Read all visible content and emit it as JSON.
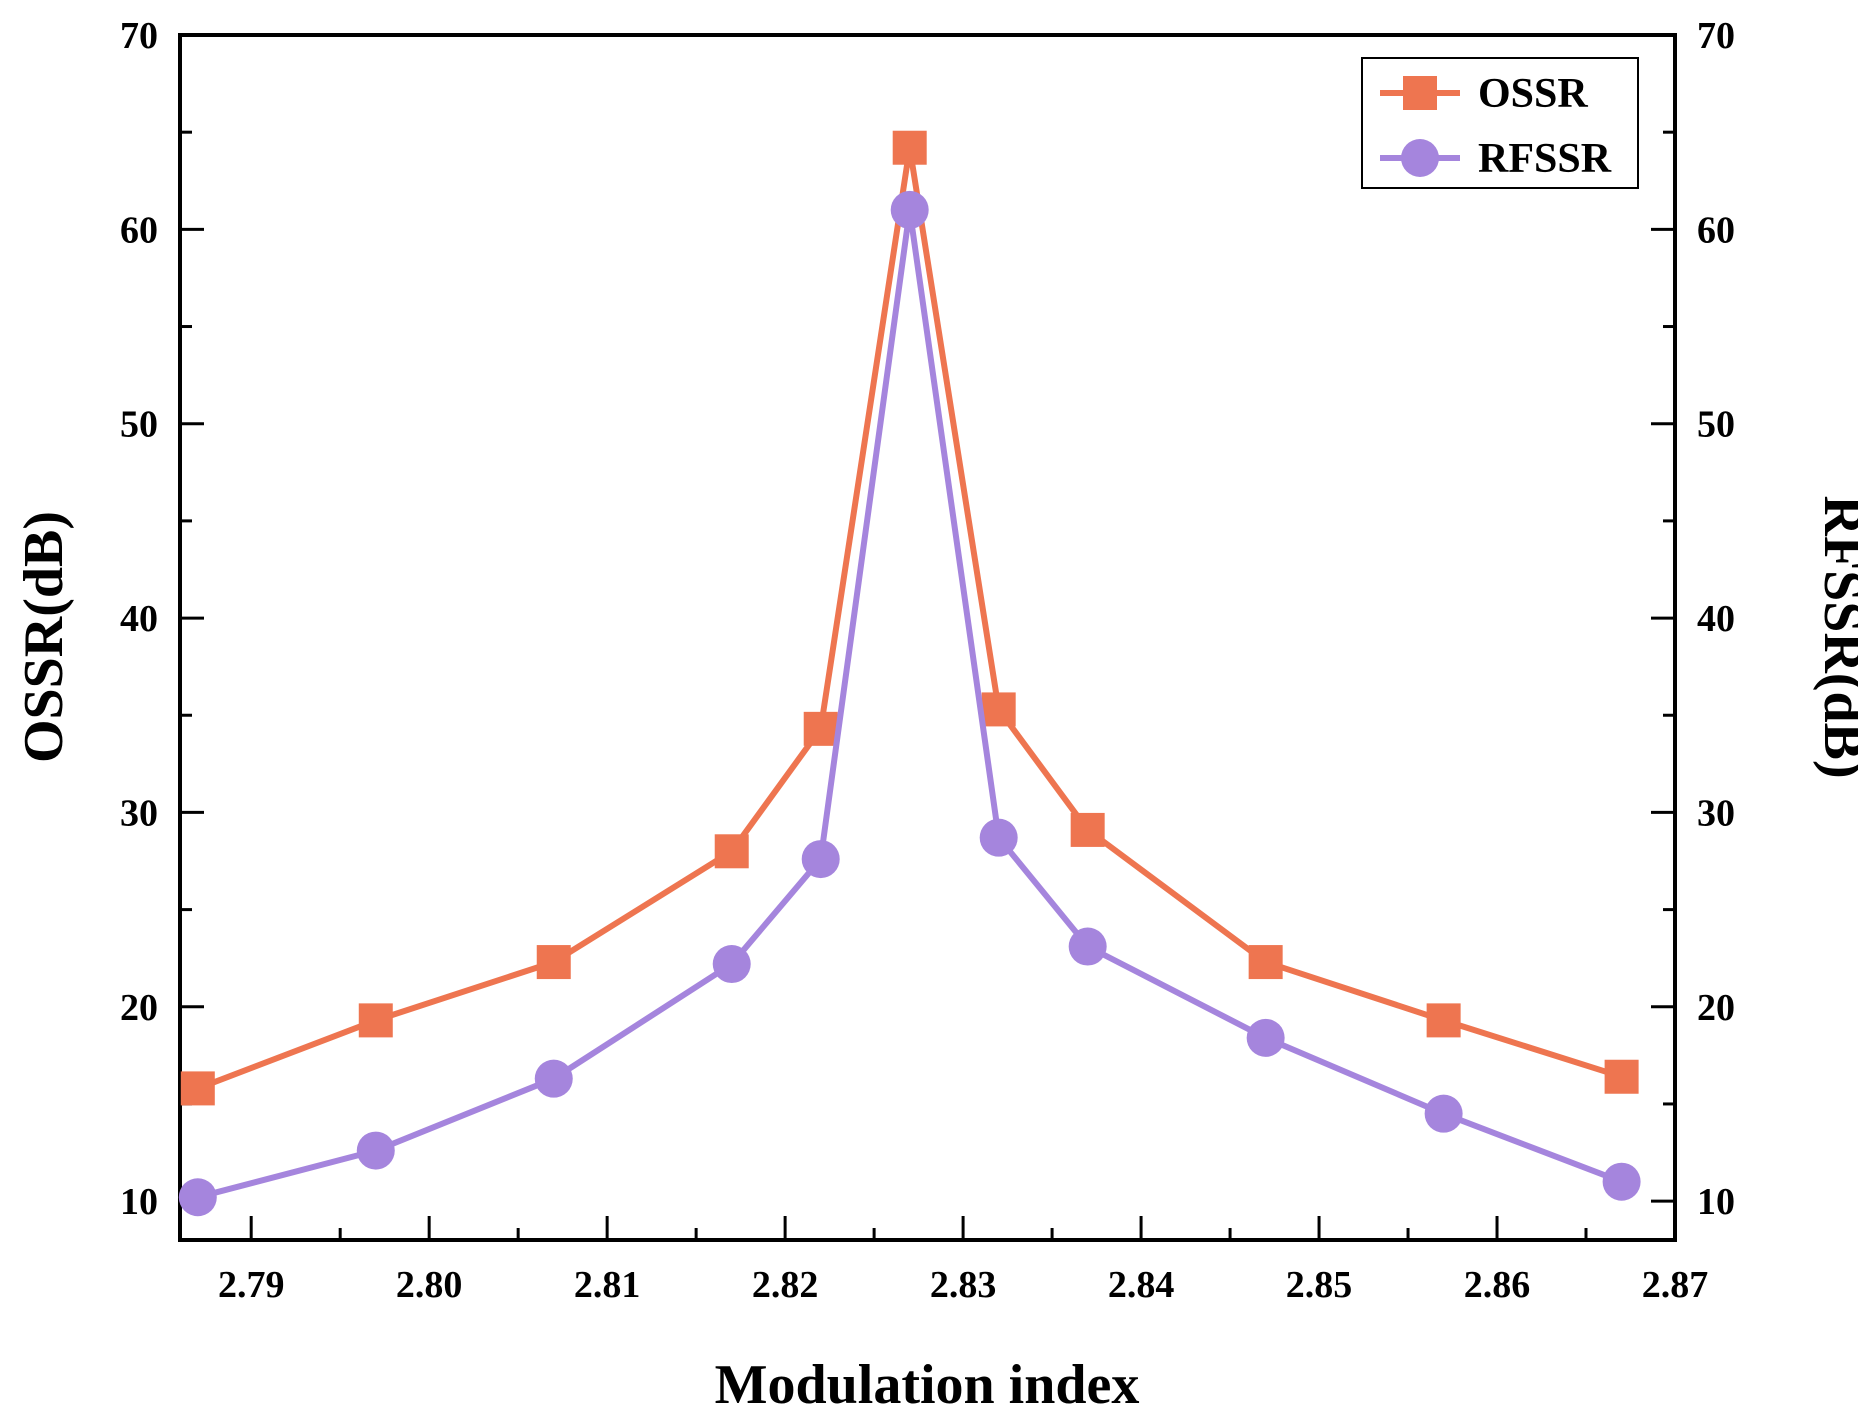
{
  "chart_data": {
    "type": "line",
    "title": "",
    "xlabel": "Modulation index",
    "ylabel": "OSSR(dB)",
    "ylabel_right": "RFSSR(dB)",
    "xlim": [
      2.786,
      2.87
    ],
    "ylim": [
      8,
      70
    ],
    "ylim_right": [
      8,
      70
    ],
    "x_ticks": [
      2.79,
      2.8,
      2.81,
      2.82,
      2.83,
      2.84,
      2.85,
      2.86,
      2.87
    ],
    "x_tick_labels": [
      "2.79",
      "2.80",
      "2.81",
      "2.82",
      "2.83",
      "2.84",
      "2.85",
      "2.86",
      "2.87"
    ],
    "y_ticks": [
      10,
      20,
      30,
      40,
      50,
      60,
      70
    ],
    "y_tick_labels": [
      "10",
      "20",
      "30",
      "40",
      "50",
      "60",
      "70"
    ],
    "y_right_ticks": [
      10,
      20,
      30,
      40,
      50,
      60,
      70
    ],
    "y_right_tick_labels": [
      "10",
      "20",
      "30",
      "40",
      "50",
      "60",
      "70"
    ],
    "grid": false,
    "legend_position": "top-right",
    "x": [
      2.787,
      2.797,
      2.807,
      2.817,
      2.822,
      2.827,
      2.832,
      2.837,
      2.847,
      2.857,
      2.867
    ],
    "series": [
      {
        "name": "OSSR",
        "axis": "left",
        "marker": "square",
        "color": "#EE7550",
        "values": [
          15.8,
          19.3,
          22.3,
          28.0,
          34.3,
          64.2,
          35.3,
          29.1,
          22.3,
          19.3,
          16.4
        ]
      },
      {
        "name": "RFSSR",
        "axis": "right",
        "marker": "circle",
        "color": "#A585DD",
        "values": [
          10.2,
          12.6,
          16.3,
          22.2,
          27.6,
          61.0,
          28.7,
          23.1,
          18.4,
          14.5,
          11.0
        ]
      }
    ]
  }
}
